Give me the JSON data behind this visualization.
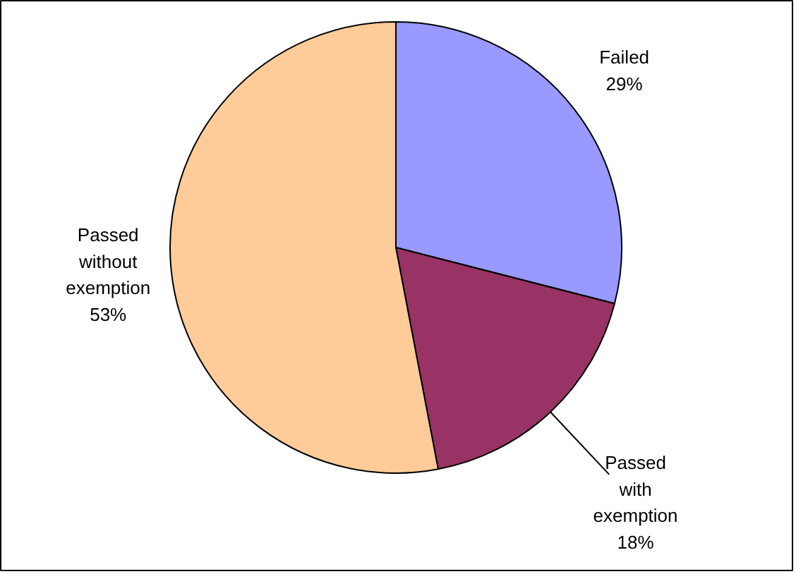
{
  "chart_data": {
    "type": "pie",
    "categories": [
      "Failed",
      "Passed with exemption",
      "Passed without exemption"
    ],
    "values": [
      29,
      18,
      53
    ],
    "colors": [
      "#9999ff",
      "#993366",
      "#ffcc99"
    ],
    "value_labels": [
      "29%",
      "18%",
      "53%"
    ]
  }
}
